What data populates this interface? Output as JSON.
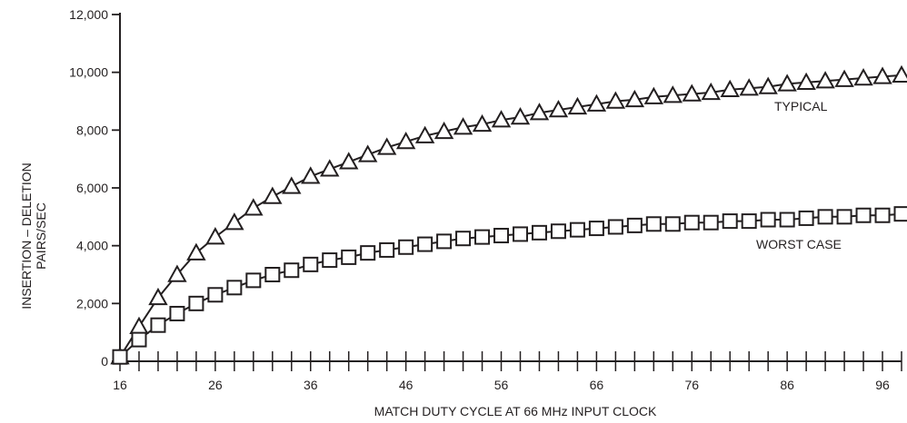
{
  "chart_data": {
    "type": "line",
    "xlabel": "MATCH DUTY CYCLE AT 66 MHz INPUT CLOCK",
    "ylabel_line1": "INSERTION – DELETION",
    "ylabel_line2": "PAIRS/SEC",
    "x_ticks": [
      16,
      26,
      36,
      46,
      56,
      66,
      76,
      86,
      96
    ],
    "y_ticks": [
      {
        "value": 0,
        "label": "0"
      },
      {
        "value": 2000,
        "label": "2,000"
      },
      {
        "value": 4000,
        "label": "4,000"
      },
      {
        "value": 6000,
        "label": "6,000"
      },
      {
        "value": 8000,
        "label": "8,000"
      },
      {
        "value": 10000,
        "label": "10,000"
      },
      {
        "value": 12000,
        "label": "12,000"
      }
    ],
    "xlim": [
      16,
      98
    ],
    "ylim": [
      0,
      12000
    ],
    "series": [
      {
        "name": "TYPICAL",
        "marker": "triangle",
        "x": [
          16,
          18,
          20,
          22,
          24,
          26,
          28,
          30,
          32,
          34,
          36,
          38,
          40,
          42,
          44,
          46,
          48,
          50,
          52,
          54,
          56,
          58,
          60,
          62,
          64,
          66,
          68,
          70,
          72,
          74,
          76,
          78,
          80,
          82,
          84,
          86,
          88,
          90,
          92,
          94,
          96,
          98
        ],
        "y": [
          150,
          1200,
          2200,
          3000,
          3750,
          4300,
          4800,
          5300,
          5700,
          6050,
          6400,
          6650,
          6900,
          7150,
          7400,
          7600,
          7800,
          7950,
          8100,
          8200,
          8350,
          8450,
          8600,
          8700,
          8800,
          8900,
          9000,
          9050,
          9150,
          9200,
          9250,
          9300,
          9400,
          9450,
          9500,
          9600,
          9650,
          9700,
          9750,
          9800,
          9850,
          9900
        ]
      },
      {
        "name": "WORST CASE",
        "marker": "square",
        "x": [
          16,
          18,
          20,
          22,
          24,
          26,
          28,
          30,
          32,
          34,
          36,
          38,
          40,
          42,
          44,
          46,
          48,
          50,
          52,
          54,
          56,
          58,
          60,
          62,
          64,
          66,
          68,
          70,
          72,
          74,
          76,
          78,
          80,
          82,
          84,
          86,
          88,
          90,
          92,
          94,
          96,
          98
        ],
        "y": [
          150,
          750,
          1250,
          1650,
          2000,
          2300,
          2550,
          2800,
          3000,
          3150,
          3350,
          3500,
          3600,
          3750,
          3850,
          3950,
          4050,
          4150,
          4250,
          4300,
          4350,
          4400,
          4450,
          4500,
          4550,
          4600,
          4650,
          4700,
          4750,
          4750,
          4800,
          4800,
          4850,
          4850,
          4900,
          4900,
          4950,
          5000,
          5000,
          5050,
          5050,
          5100
        ]
      }
    ]
  }
}
